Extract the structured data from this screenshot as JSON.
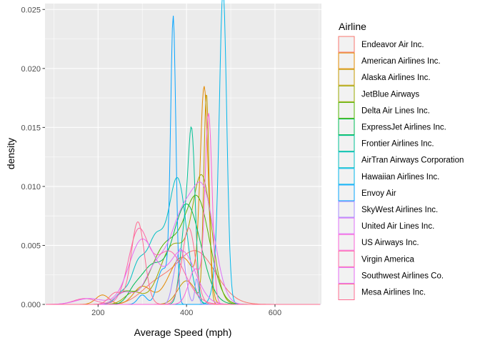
{
  "chart_data": {
    "type": "line",
    "xlabel": "Average Speed (mph)",
    "ylabel": "density",
    "xlim": [
      80,
      705
    ],
    "ylim": [
      0,
      0.0255
    ],
    "x_ticks": [
      200,
      400,
      600
    ],
    "y_ticks": [
      0,
      0.005,
      0.01,
      0.015,
      0.02,
      0.025
    ],
    "x_tick_labels": [
      "200",
      "400",
      "600"
    ],
    "y_tick_labels": [
      "0.000",
      "0.005",
      "0.010",
      "0.015",
      "0.020",
      "0.025"
    ],
    "grid": true,
    "background": "#ebebeb",
    "legend": {
      "title": "Airline",
      "position": "right"
    },
    "series": [
      {
        "name": "Endeavor Air Inc.",
        "color": "#F8766D",
        "peaks": [
          [
            420,
            0.0045,
            45
          ],
          [
            330,
            0.0015,
            35
          ]
        ],
        "range": [
          240,
          520
        ]
      },
      {
        "name": "American Airlines Inc.",
        "color": "#E38900",
        "peaks": [
          [
            440,
            0.0175,
            9
          ],
          [
            390,
            0.004,
            30
          ],
          [
            300,
            0.0015,
            20
          ],
          [
            210,
            0.0008,
            15
          ]
        ],
        "range": [
          150,
          520
        ]
      },
      {
        "name": "Alaska Airlines Inc.",
        "color": "#C49A00",
        "peaks": [
          [
            445,
            0.0178,
            6
          ],
          [
            400,
            0.002,
            20
          ]
        ],
        "range": [
          360,
          480
        ]
      },
      {
        "name": "JetBlue Airways",
        "color": "#99A800",
        "peaks": [
          [
            435,
            0.0105,
            22
          ],
          [
            370,
            0.005,
            30
          ],
          [
            280,
            0.001,
            20
          ]
        ],
        "range": [
          180,
          560
        ]
      },
      {
        "name": "Delta Air Lines Inc.",
        "color": "#53B400",
        "peaks": [
          [
            425,
            0.0085,
            28
          ],
          [
            355,
            0.005,
            35
          ],
          [
            260,
            0.001,
            20
          ]
        ],
        "range": [
          170,
          700
        ]
      },
      {
        "name": "ExpressJet Airlines Inc.",
        "color": "#00BC56",
        "peaks": [
          [
            400,
            0.0085,
            32
          ],
          [
            320,
            0.003,
            25
          ],
          [
            280,
            0.0008,
            15
          ]
        ],
        "range": [
          150,
          560
        ]
      },
      {
        "name": "Frontier Airlines Inc.",
        "color": "#00C094",
        "peaks": [
          [
            412,
            0.0135,
            8
          ],
          [
            395,
            0.006,
            10
          ]
        ],
        "range": [
          360,
          450
        ]
      },
      {
        "name": "AirTran Airways Corporation",
        "color": "#00BFC4",
        "peaks": [
          [
            380,
            0.0105,
            20
          ],
          [
            330,
            0.0055,
            20
          ],
          [
            290,
            0.003,
            15
          ],
          [
            255,
            0.001,
            15
          ]
        ],
        "range": [
          180,
          500
        ]
      },
      {
        "name": "Hawaiian Airlines Inc.",
        "color": "#00B6EB",
        "peaks": [
          [
            483,
            0.0234,
            8
          ],
          [
            475,
            0.004,
            12
          ]
        ],
        "range": [
          440,
          520
        ]
      },
      {
        "name": "Envoy Air",
        "color": "#06A4FF",
        "peaks": [
          [
            370,
            0.0238,
            6
          ],
          [
            355,
            0.002,
            10
          ],
          [
            340,
            0.002,
            10
          ],
          [
            300,
            0.0008,
            10
          ]
        ],
        "range": [
          260,
          420
        ]
      },
      {
        "name": "SkyWest Airlines Inc.",
        "color": "#A58AFF",
        "peaks": [
          [
            423,
            0.0022,
            4
          ],
          [
            388,
            0.0045,
            10
          ],
          [
            372,
            0.0015,
            8
          ]
        ],
        "range": [
          360,
          440
        ]
      },
      {
        "name": "United Air Lines Inc.",
        "color": "#DF70F8",
        "peaks": [
          [
            440,
            0.0085,
            25
          ],
          [
            390,
            0.007,
            28
          ],
          [
            330,
            0.003,
            25
          ],
          [
            260,
            0.001,
            20
          ]
        ],
        "range": [
          170,
          600
        ]
      },
      {
        "name": "US Airways Inc.",
        "color": "#FB61D7",
        "peaks": [
          [
            450,
            0.0158,
            8
          ],
          [
            420,
            0.003,
            15
          ]
        ],
        "range": [
          400,
          490
        ]
      },
      {
        "name": "Virgin America",
        "color": "#FF66A8",
        "peaks": [
          [
            290,
            0.0058,
            22
          ],
          [
            360,
            0.0045,
            35
          ],
          [
            170,
            0.0005,
            25
          ]
        ],
        "range": [
          100,
          500
        ]
      },
      {
        "name": "Southwest Airlines Co.",
        "color": "#E76BF3",
        "peaks": [
          [
            300,
            0.0055,
            30
          ],
          [
            390,
            0.0045,
            30
          ],
          [
            180,
            0.0005,
            30
          ]
        ],
        "range": [
          100,
          520
        ]
      },
      {
        "name": "Mesa Airlines Inc.",
        "color": "#FF6C91",
        "peaks": [
          [
            290,
            0.007,
            15
          ],
          [
            405,
            0.0065,
            15
          ],
          [
            240,
            0.001,
            15
          ]
        ],
        "range": [
          200,
          470
        ]
      }
    ]
  }
}
